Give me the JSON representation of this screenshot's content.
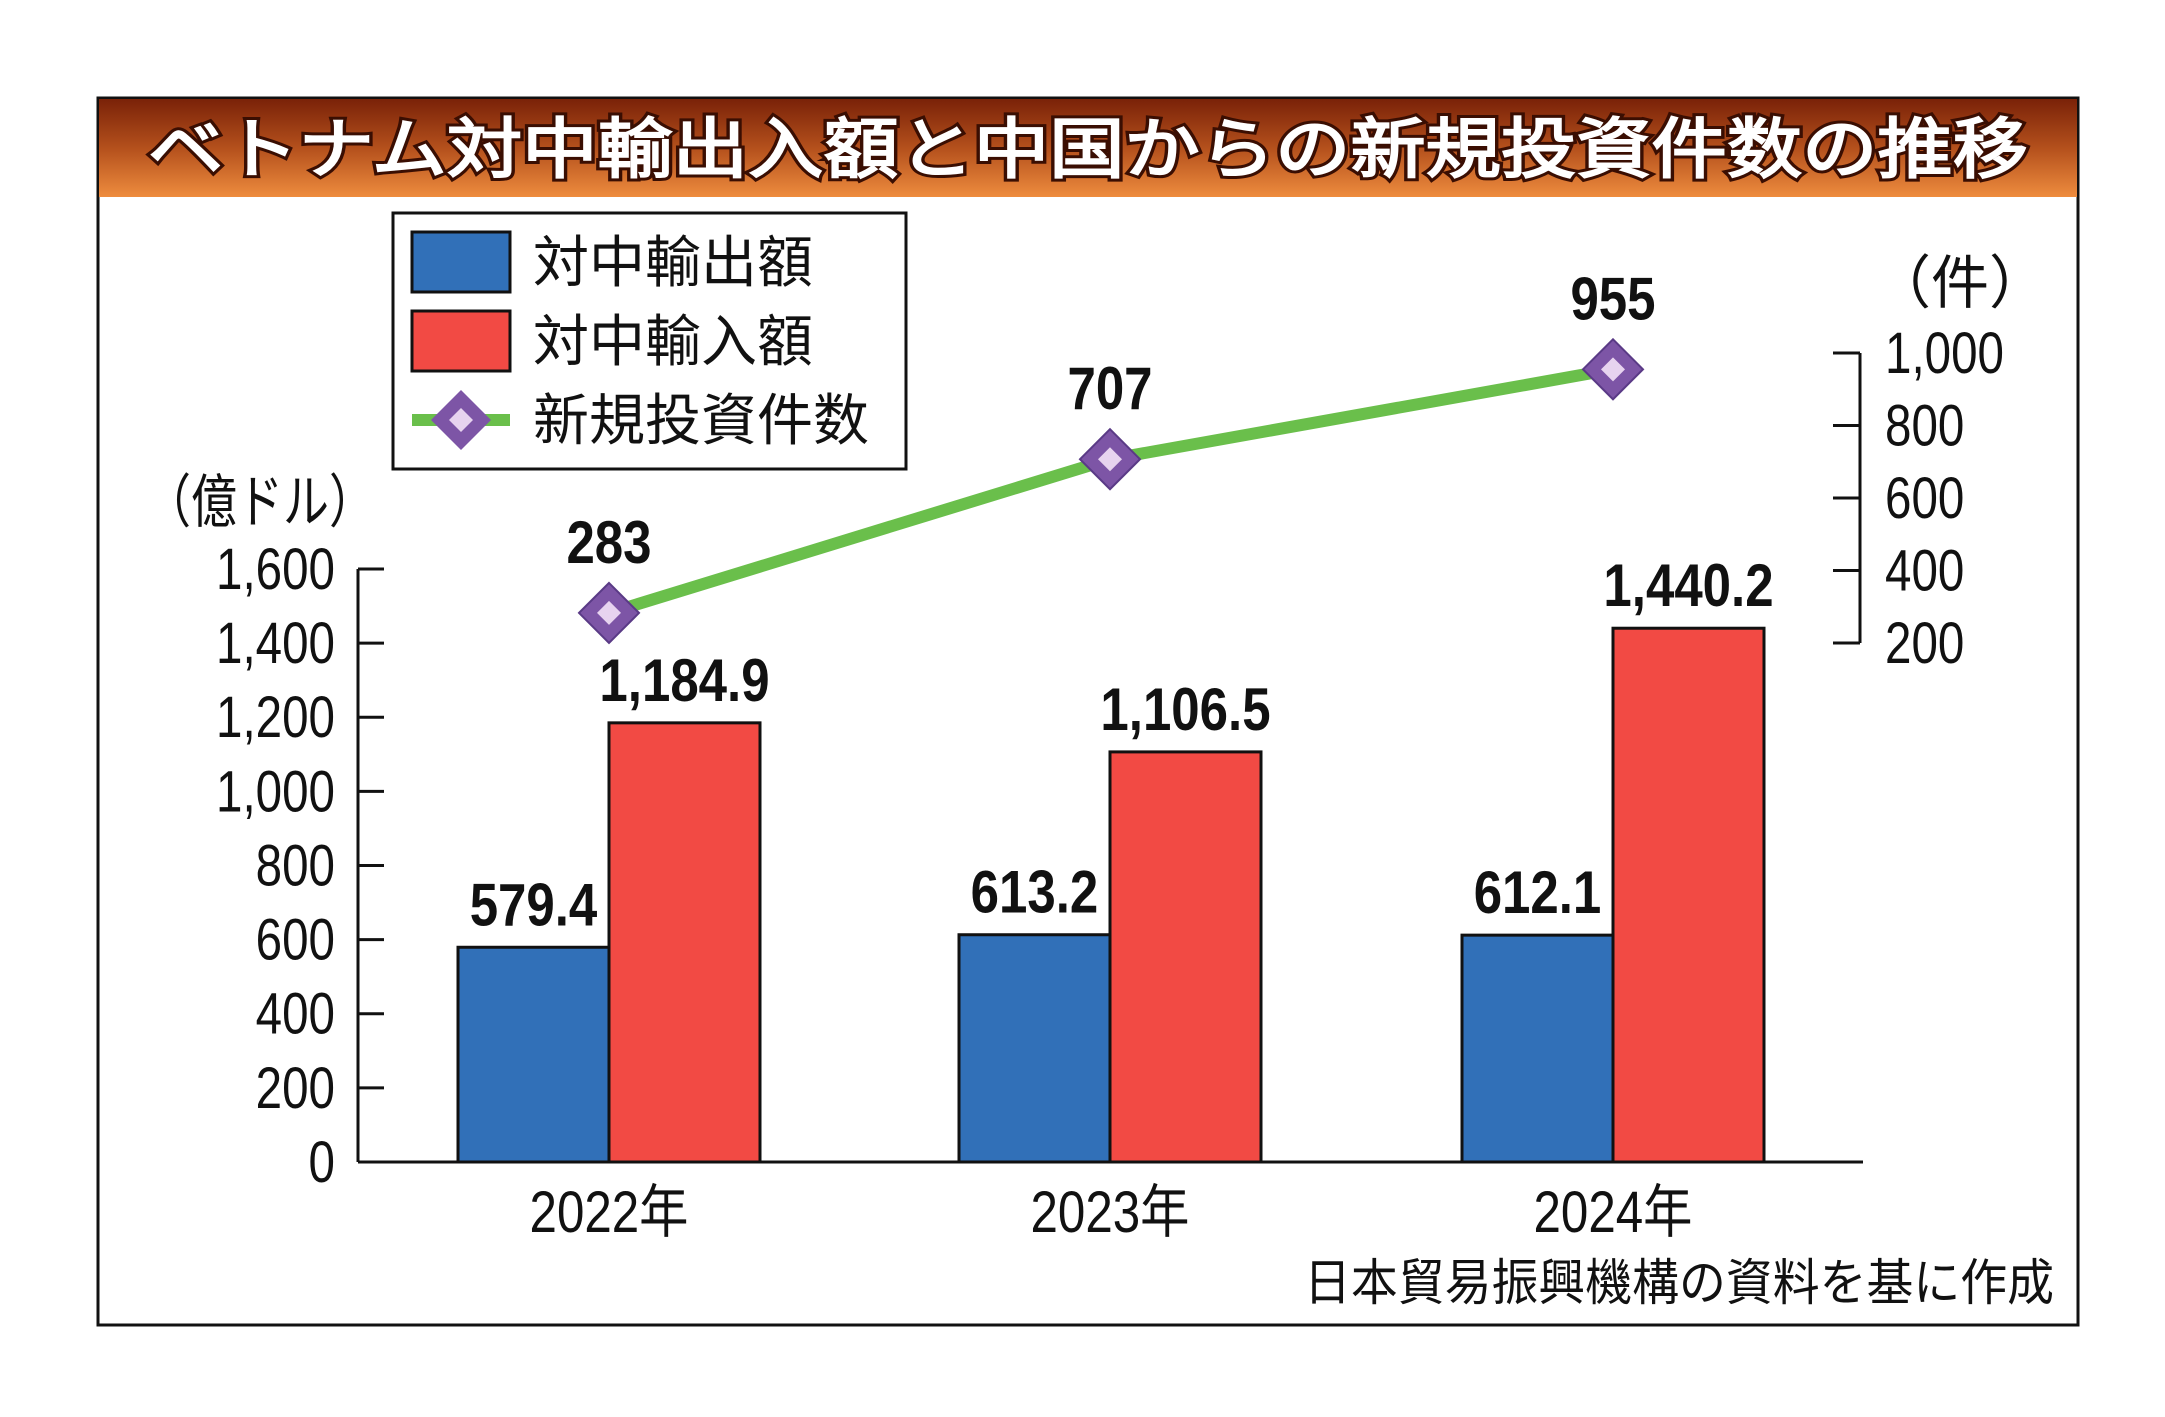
{
  "chart_data": {
    "type": "bar+line",
    "title": "ベトナム対中輸出入額と中国からの新規投資件数の推移",
    "categories": [
      "2022年",
      "2023年",
      "2024年"
    ],
    "series": [
      {
        "name": "対中輸出額",
        "type": "bar",
        "axis": "left",
        "color": "#3170b8",
        "values": [
          579.4,
          613.2,
          612.1
        ],
        "labels": [
          "579.4",
          "613.2",
          "612.1"
        ]
      },
      {
        "name": "対中輸入額",
        "type": "bar",
        "axis": "left",
        "color": "#f24a44",
        "values": [
          1184.9,
          1106.5,
          1440.2
        ],
        "labels": [
          "1,184.9",
          "1,106.5",
          "1,440.2"
        ]
      },
      {
        "name": "新規投資件数",
        "type": "line",
        "axis": "right",
        "color": "#6abf4b",
        "marker_color": "#7d55a6",
        "values": [
          283,
          707,
          955
        ],
        "labels": [
          "283",
          "707",
          "955"
        ]
      }
    ],
    "left_axis": {
      "unit": "（億ドル）",
      "ylim": [
        0,
        1600
      ],
      "ticks": [
        "0",
        "200",
        "400",
        "600",
        "800",
        "1,000",
        "1,200",
        "1,400",
        "1,600"
      ]
    },
    "right_axis": {
      "unit": "（件）",
      "ylim": [
        200,
        1000
      ],
      "ticks": [
        "200",
        "400",
        "600",
        "800",
        "1,000"
      ]
    },
    "legend_placement": "top-left",
    "grid": false,
    "source": "日本貿易振興機構の資料を基に作成"
  }
}
